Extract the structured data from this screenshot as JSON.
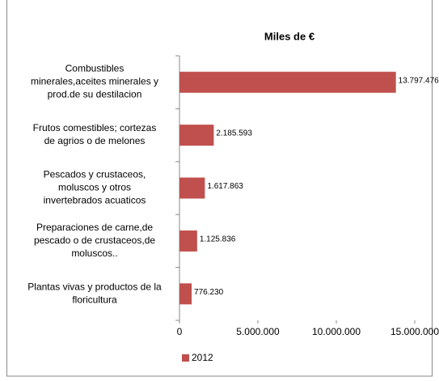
{
  "chart_data": {
    "type": "bar",
    "orientation": "horizontal",
    "subtitle": "Miles de €",
    "categories": [
      "Combustibles\nminerales,aceites minerales y\nprod.de su destilacion",
      "Frutos comestibles; cortezas\nde agrios o de melones",
      "Pescados y crustaceos,\nmoluscos y otros\ninvertebrados acuaticos",
      "Preparaciones de carne,de\npescado o de crustaceos,de\nmoluscos..",
      "Plantas vivas y productos de la\nfloricultura"
    ],
    "series": [
      {
        "name": "2012",
        "color": "#c0504d",
        "values": [
          13797476,
          2185593,
          1617863,
          1125836,
          776230
        ],
        "value_labels": [
          "13.797.476",
          "2.185.593",
          "1.617.863",
          "1.125.836",
          "776.230"
        ]
      }
    ],
    "xlim": [
      0,
      15000000
    ],
    "xticks": [
      0,
      {
        "value": 5000000,
        "label": "5.000.000"
      },
      {
        "value": 10000000,
        "label": "10.000.000"
      },
      {
        "value": 15000000,
        "label": "15.000.000"
      }
    ],
    "legend": "bottom"
  }
}
